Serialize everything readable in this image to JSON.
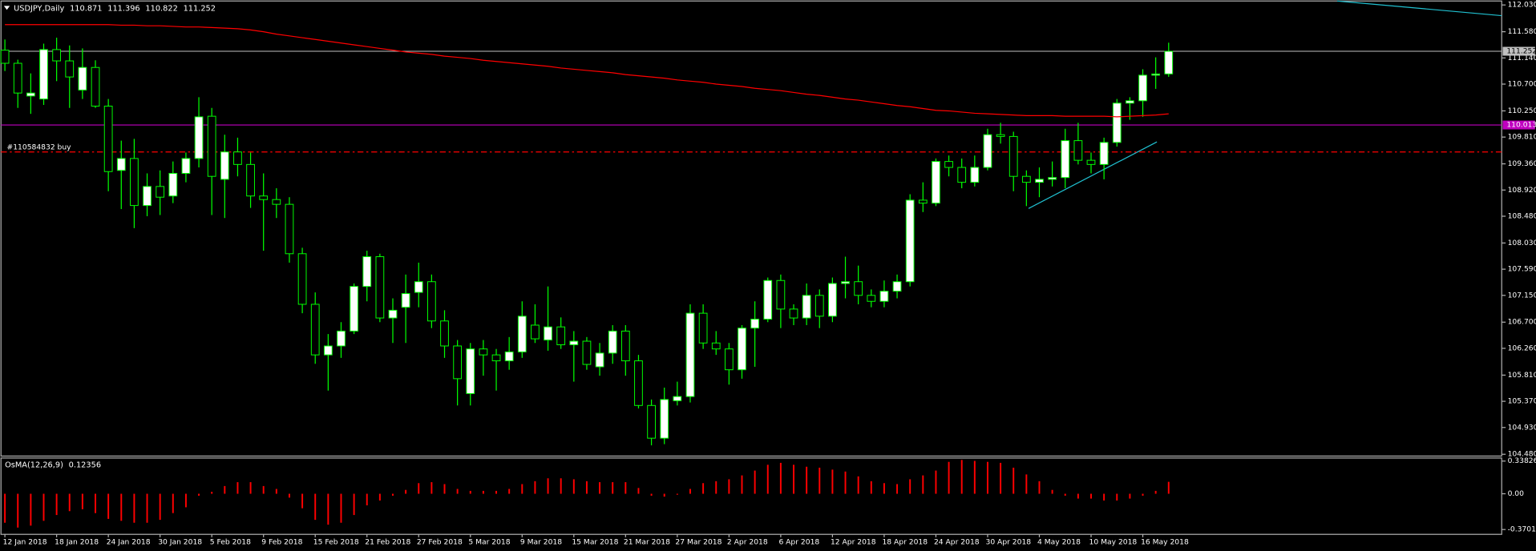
{
  "chart_data": [
    {
      "type": "candlestick",
      "title": "USDJPY,Daily",
      "categories": [
        "12 Jan 2018",
        null,
        null,
        null,
        "18 Jan 2018",
        null,
        null,
        null,
        "24 Jan 2018",
        null,
        null,
        null,
        "30 Jan 2018",
        null,
        null,
        null,
        "5 Feb 2018",
        null,
        null,
        null,
        "9 Feb 2018",
        null,
        null,
        null,
        "15 Feb 2018",
        null,
        null,
        null,
        "21 Feb 2018",
        null,
        null,
        null,
        "27 Feb 2018",
        null,
        null,
        null,
        "5 Mar 2018",
        null,
        null,
        null,
        "9 Mar 2018",
        null,
        null,
        null,
        "15 Mar 2018",
        null,
        null,
        null,
        "21 Mar 2018",
        null,
        null,
        null,
        "27 Mar 2018",
        null,
        null,
        null,
        "2 Apr 2018",
        null,
        null,
        null,
        "6 Apr 2018",
        null,
        null,
        null,
        "12 Apr 2018",
        null,
        null,
        null,
        "18 Apr 2018",
        null,
        null,
        null,
        "24 Apr 2018",
        null,
        null,
        null,
        "30 Apr 2018",
        null,
        null,
        null,
        "4 May 2018",
        null,
        null,
        null,
        "10 May 2018",
        null,
        null,
        null,
        "16 May 2018",
        null,
        null
      ],
      "open": [
        111.27,
        111.05,
        110.5,
        110.45,
        111.28,
        111.09,
        110.6,
        110.98,
        110.33,
        109.25,
        109.45,
        108.66,
        108.98,
        108.82,
        109.2,
        109.45,
        110.16,
        109.1,
        109.56,
        109.35,
        108.82,
        108.76,
        108.68,
        107.85,
        107.0,
        106.15,
        106.3,
        106.55,
        107.3,
        107.8,
        106.77,
        106.95,
        107.2,
        107.38,
        106.72,
        106.3,
        105.5,
        106.25,
        106.15,
        106.05,
        106.2,
        106.65,
        106.4,
        106.62,
        106.32,
        106.38,
        105.95,
        106.18,
        106.55,
        106.05,
        105.3,
        104.75,
        105.38,
        105.45,
        106.85,
        106.35,
        106.25,
        105.9,
        106.6,
        106.75,
        107.4,
        106.92,
        106.77,
        107.15,
        106.8,
        107.35,
        107.38,
        107.15,
        107.05,
        107.22,
        107.38,
        108.75,
        108.7,
        109.4,
        109.3,
        109.05,
        109.3,
        109.85,
        109.82,
        109.15,
        109.05,
        109.1,
        109.13,
        109.75,
        109.42,
        109.35,
        109.72,
        110.38,
        110.42,
        110.85,
        110.871
      ],
      "high": [
        111.45,
        111.11,
        110.88,
        111.38,
        111.48,
        111.35,
        111.3,
        111.1,
        110.45,
        109.75,
        109.78,
        109.2,
        109.25,
        109.4,
        109.55,
        110.48,
        110.3,
        109.85,
        109.8,
        109.55,
        109.2,
        108.95,
        108.8,
        107.95,
        107.2,
        106.5,
        106.7,
        107.35,
        107.9,
        107.85,
        107.1,
        107.5,
        107.7,
        107.5,
        106.9,
        106.4,
        106.35,
        106.4,
        106.25,
        106.45,
        107.05,
        107.0,
        107.3,
        106.78,
        106.55,
        106.45,
        106.35,
        106.65,
        106.65,
        106.15,
        105.4,
        105.6,
        105.7,
        107.0,
        107.0,
        106.55,
        106.35,
        106.65,
        107.05,
        107.45,
        107.5,
        107.0,
        107.35,
        107.25,
        107.45,
        107.8,
        107.65,
        107.25,
        107.4,
        107.5,
        108.85,
        109.05,
        109.45,
        109.5,
        109.45,
        109.5,
        109.95,
        110.05,
        109.9,
        109.25,
        109.3,
        109.4,
        109.95,
        110.05,
        109.55,
        109.8,
        110.45,
        110.48,
        110.95,
        111.15,
        111.396
      ],
      "low": [
        110.92,
        110.3,
        110.2,
        110.35,
        110.75,
        110.3,
        110.45,
        110.3,
        108.9,
        108.6,
        108.28,
        108.48,
        108.5,
        108.7,
        109.05,
        109.3,
        108.5,
        108.45,
        109.15,
        108.62,
        107.9,
        108.45,
        107.7,
        106.85,
        106.0,
        105.55,
        106.1,
        106.5,
        107.05,
        106.7,
        106.35,
        106.35,
        106.95,
        106.6,
        106.1,
        105.3,
        105.3,
        105.8,
        105.55,
        105.9,
        106.1,
        106.35,
        106.22,
        106.25,
        105.7,
        105.9,
        105.8,
        106.0,
        105.8,
        105.25,
        104.63,
        104.65,
        105.3,
        105.35,
        106.25,
        106.15,
        105.65,
        105.75,
        105.95,
        106.7,
        106.6,
        106.65,
        106.65,
        106.6,
        106.7,
        107.1,
        107.0,
        106.95,
        106.95,
        107.1,
        107.3,
        108.55,
        108.65,
        109.15,
        108.95,
        108.98,
        109.25,
        109.7,
        108.9,
        108.65,
        108.8,
        108.98,
        108.95,
        109.35,
        109.2,
        109.1,
        109.65,
        110.1,
        110.15,
        110.62,
        110.822
      ],
      "close": [
        111.05,
        110.55,
        110.55,
        111.28,
        111.09,
        110.82,
        110.98,
        110.33,
        109.23,
        109.45,
        108.66,
        108.98,
        108.8,
        109.2,
        109.45,
        110.15,
        109.15,
        109.56,
        109.35,
        108.82,
        108.76,
        108.68,
        107.85,
        107.0,
        106.15,
        106.3,
        106.55,
        107.3,
        107.8,
        106.77,
        106.9,
        107.18,
        107.38,
        106.72,
        106.3,
        105.75,
        106.25,
        106.15,
        106.05,
        106.2,
        106.8,
        106.42,
        106.62,
        106.32,
        106.38,
        105.99,
        106.18,
        106.55,
        106.05,
        105.3,
        104.75,
        105.4,
        105.45,
        106.85,
        106.35,
        106.25,
        105.9,
        106.6,
        106.75,
        107.4,
        106.92,
        106.77,
        107.15,
        106.8,
        107.35,
        107.38,
        107.15,
        107.05,
        107.22,
        107.38,
        108.75,
        108.7,
        109.4,
        109.3,
        109.05,
        109.3,
        109.85,
        109.82,
        109.15,
        109.05,
        109.1,
        109.13,
        109.75,
        109.42,
        109.35,
        109.72,
        110.38,
        110.42,
        110.85,
        110.87,
        111.252
      ],
      "ma": {
        "color": "#ff0000",
        "values": [
          111.7,
          111.7,
          111.7,
          111.7,
          111.7,
          111.7,
          111.7,
          111.7,
          111.7,
          111.69,
          111.69,
          111.68,
          111.68,
          111.67,
          111.66,
          111.66,
          111.65,
          111.64,
          111.63,
          111.61,
          111.58,
          111.54,
          111.51,
          111.48,
          111.45,
          111.42,
          111.39,
          111.36,
          111.33,
          111.3,
          111.27,
          111.24,
          111.22,
          111.2,
          111.17,
          111.15,
          111.13,
          111.1,
          111.08,
          111.06,
          111.04,
          111.02,
          111.0,
          110.97,
          110.95,
          110.93,
          110.91,
          110.89,
          110.86,
          110.84,
          110.82,
          110.8,
          110.77,
          110.75,
          110.73,
          110.7,
          110.68,
          110.66,
          110.63,
          110.61,
          110.59,
          110.56,
          110.53,
          110.51,
          110.48,
          110.45,
          110.43,
          110.4,
          110.37,
          110.34,
          110.32,
          110.29,
          110.26,
          110.25,
          110.23,
          110.21,
          110.2,
          110.19,
          110.18,
          110.17,
          110.17,
          110.17,
          110.16,
          110.16,
          110.16,
          110.16,
          110.15,
          110.16,
          110.17,
          110.18,
          110.2
        ]
      },
      "up_color": "#ffffff",
      "down_color": "#000000",
      "wick_color": "#00ff00",
      "price_line_color": "#c0c0c0",
      "hlines": [
        {
          "value": 110.013,
          "color": "#c000c0"
        }
      ],
      "order": {
        "label": "#110584832 buy",
        "value": 109.56,
        "color": "#ff0000"
      },
      "ylim": [
        104.45,
        112.08
      ],
      "yticks": [
        {
          "value": 112.03,
          "label": "112.030"
        },
        {
          "value": 111.58,
          "label": "111.580"
        },
        {
          "value": 111.14,
          "label": "111.140"
        },
        {
          "value": 110.7,
          "label": "110.700"
        },
        {
          "value": 110.25,
          "label": "110.250"
        },
        {
          "value": 109.81,
          "label": "109.810"
        },
        {
          "value": 109.36,
          "label": "109.360"
        },
        {
          "value": 108.92,
          "label": "108.920"
        },
        {
          "value": 108.48,
          "label": "108.480"
        },
        {
          "value": 108.03,
          "label": "108.030"
        },
        {
          "value": 107.59,
          "label": "107.590"
        },
        {
          "value": 107.15,
          "label": "107.150"
        },
        {
          "value": 106.7,
          "label": "106.700"
        },
        {
          "value": 106.26,
          "label": "106.260"
        },
        {
          "value": 105.81,
          "label": "105.810"
        },
        {
          "value": 105.37,
          "label": "105.370"
        },
        {
          "value": 104.93,
          "label": "104.930"
        },
        {
          "value": 104.48,
          "label": "104.480"
        }
      ]
    },
    {
      "type": "bar",
      "title": "OsMA(12,26,9)",
      "color": "#ff0000",
      "values": [
        -0.3,
        -0.35,
        -0.33,
        -0.28,
        -0.22,
        -0.18,
        -0.16,
        -0.2,
        -0.26,
        -0.28,
        -0.3,
        -0.3,
        -0.27,
        -0.2,
        -0.14,
        -0.02,
        0.02,
        0.08,
        0.12,
        0.12,
        0.08,
        0.05,
        -0.04,
        -0.15,
        -0.27,
        -0.32,
        -0.3,
        -0.22,
        -0.12,
        -0.07,
        -0.02,
        0.04,
        0.11,
        0.12,
        0.1,
        0.05,
        0.03,
        0.03,
        0.03,
        0.05,
        0.1,
        0.13,
        0.16,
        0.16,
        0.15,
        0.13,
        0.12,
        0.12,
        0.12,
        0.06,
        -0.02,
        -0.03,
        -0.01,
        0.05,
        0.11,
        0.13,
        0.15,
        0.19,
        0.24,
        0.3,
        0.32,
        0.3,
        0.28,
        0.27,
        0.25,
        0.23,
        0.18,
        0.13,
        0.11,
        0.1,
        0.15,
        0.19,
        0.24,
        0.33,
        0.35,
        0.34,
        0.33,
        0.32,
        0.27,
        0.2,
        0.13,
        0.04,
        -0.02,
        -0.05,
        -0.05,
        -0.07,
        -0.07,
        -0.05,
        -0.02,
        0.03,
        0.12356
      ],
      "ylim": [
        -0.42,
        0.37
      ],
      "yticks": [
        0.33826,
        {
          "value": 0,
          "label": "0.00"
        },
        -0.37015
      ]
    }
  ]
}
